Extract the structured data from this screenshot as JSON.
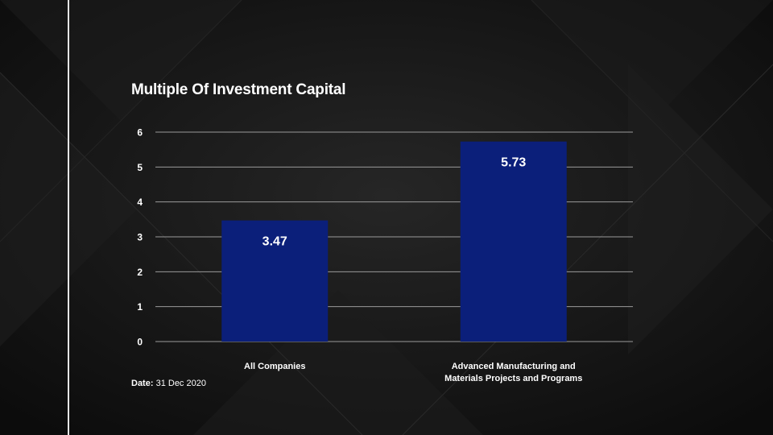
{
  "colors": {
    "background": "#161616",
    "bar": "#0b1f7a",
    "gridline": "#9a9a9a",
    "text": "#ffffff",
    "side_line": "#e6e6e6"
  },
  "chart_data": {
    "type": "bar",
    "title": "Multiple Of Investment Capital",
    "categories": [
      "All Companies",
      "Advanced Manufacturing and Materials Projects and Programs"
    ],
    "category_lines": [
      [
        "All Companies"
      ],
      [
        "Advanced Manufacturing and",
        "Materials Projects and Programs"
      ]
    ],
    "values": [
      3.47,
      5.73
    ],
    "value_labels": [
      "3.47",
      "5.73"
    ],
    "ylim": [
      0,
      6
    ],
    "yticks": [
      0,
      1,
      2,
      3,
      4,
      5,
      6
    ],
    "grid": true,
    "xlabel": "",
    "ylabel": ""
  },
  "footer": {
    "date_label": "Date:",
    "date_value": "31 Dec 2020"
  }
}
